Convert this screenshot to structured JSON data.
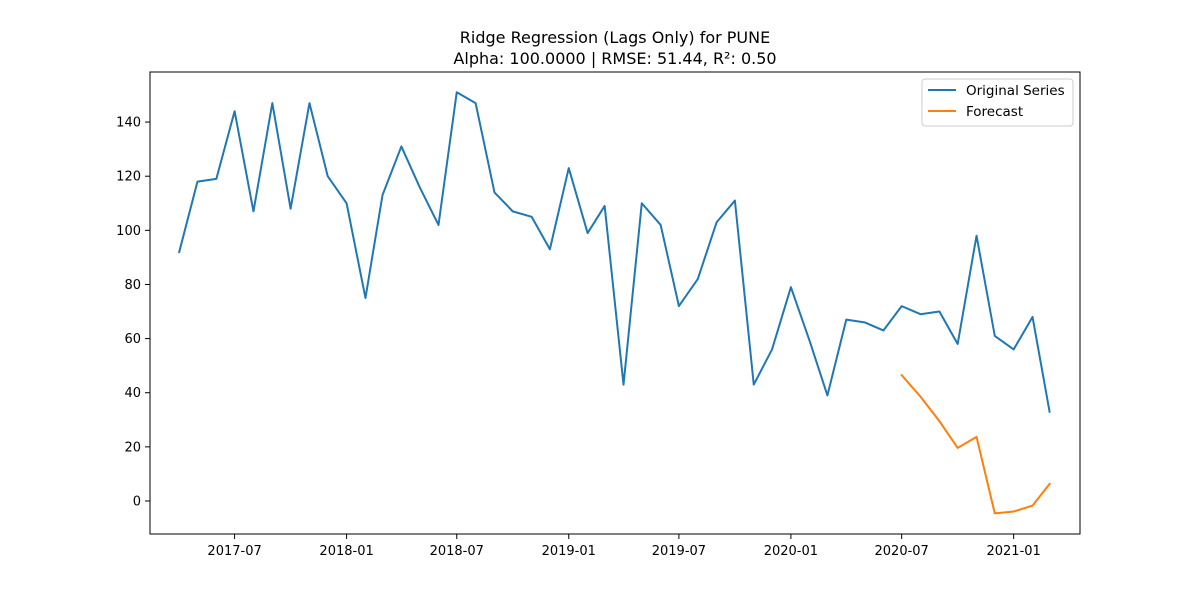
{
  "chart_data": {
    "type": "line",
    "title": "Ridge Regression (Lags Only) for PUNE",
    "subtitle": "Alpha: 100.0000 | RMSE: 51.44, R²: 0.50",
    "xlabel": "",
    "ylabel": "",
    "xlim": [
      "2017-02-12",
      "2021-04-20"
    ],
    "ylim": [
      -12.2,
      158.5
    ],
    "x_ticks": [
      "2017-07",
      "2018-01",
      "2018-07",
      "2019-01",
      "2019-07",
      "2020-01",
      "2020-07",
      "2021-01"
    ],
    "y_ticks": [
      0,
      20,
      40,
      60,
      80,
      100,
      120,
      140
    ],
    "grid": false,
    "legend_position": "upper right",
    "series": [
      {
        "name": "Original Series",
        "color": "#1f77b4",
        "x": [
          "2017-04-01",
          "2017-05-01",
          "2017-06-01",
          "2017-07-01",
          "2017-08-01",
          "2017-09-01",
          "2017-10-01",
          "2017-11-01",
          "2017-12-01",
          "2018-01-01",
          "2018-02-01",
          "2018-03-01",
          "2018-04-01",
          "2018-05-01",
          "2018-06-01",
          "2018-07-01",
          "2018-08-01",
          "2018-09-01",
          "2018-10-01",
          "2018-11-01",
          "2018-12-01",
          "2019-01-01",
          "2019-02-01",
          "2019-03-01",
          "2019-04-01",
          "2019-05-01",
          "2019-06-01",
          "2019-07-01",
          "2019-08-01",
          "2019-09-01",
          "2019-10-01",
          "2019-11-01",
          "2019-12-01",
          "2020-01-01",
          "2020-02-01",
          "2020-03-01",
          "2020-04-01",
          "2020-05-01",
          "2020-06-01",
          "2020-07-01",
          "2020-08-01",
          "2020-09-01",
          "2020-10-01",
          "2020-11-01",
          "2020-12-01",
          "2021-01-01",
          "2021-02-01",
          "2021-03-01"
        ],
        "values": [
          92,
          118,
          119,
          144,
          107,
          147,
          108,
          147,
          120,
          110,
          75,
          113,
          131,
          116,
          102,
          151,
          147,
          114,
          107,
          105,
          93,
          123,
          99,
          109,
          43,
          110,
          102,
          72,
          82,
          103,
          111,
          43,
          56,
          79,
          59,
          39,
          67,
          66,
          63,
          72,
          69,
          70,
          58,
          98,
          61,
          56,
          68,
          33
        ]
      },
      {
        "name": "Forecast",
        "color": "#ff7f0e",
        "x": [
          "2020-07-01",
          "2020-08-01",
          "2020-09-01",
          "2020-10-01",
          "2020-11-01",
          "2020-12-01",
          "2021-01-01",
          "2021-02-01",
          "2021-03-01"
        ],
        "values": [
          46.5,
          38.5,
          29.5,
          19.6,
          23.7,
          -4.6,
          -3.9,
          -1.7,
          6.3
        ]
      }
    ]
  }
}
